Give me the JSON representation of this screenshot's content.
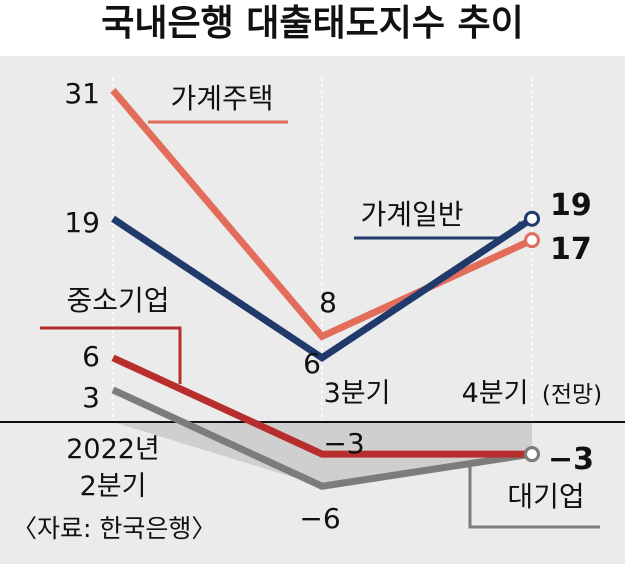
{
  "title": "국내은행 대출태도지수 추이",
  "source": "〈자료: 한국은행〉",
  "colors": {
    "background": "#ebebeb",
    "band": "#cfcfcf",
    "household_housing": "#e26d5b",
    "household_general": "#1f3a6b",
    "sme": "#b72e2c",
    "large_corp": "#7c7c7c"
  },
  "chart_data": {
    "type": "line",
    "title": "국내은행 대출태도지수 추이",
    "categories": [
      [
        "2022년",
        "2분기"
      ],
      [
        "3분기"
      ],
      [
        "4분기",
        "(전망)"
      ]
    ],
    "ylim": [
      -8,
      33
    ],
    "grid": false,
    "series": [
      {
        "name": "가계주택",
        "values": [
          31,
          8,
          17
        ],
        "labels": [
          "31",
          "8",
          "17"
        ],
        "color": "#e26d5b"
      },
      {
        "name": "가계일반",
        "values": [
          19,
          6,
          19
        ],
        "labels": [
          "19",
          "6",
          "19"
        ],
        "color": "#1f3a6b"
      },
      {
        "name": "중소기업",
        "values": [
          6,
          -3,
          -3
        ],
        "labels": [
          "6",
          "−3",
          "−3"
        ],
        "color": "#b72e2c"
      },
      {
        "name": "대기업",
        "values": [
          3,
          -6,
          -3
        ],
        "labels": [
          "3",
          "−6",
          "−3"
        ],
        "color": "#7c7c7c"
      }
    ]
  }
}
